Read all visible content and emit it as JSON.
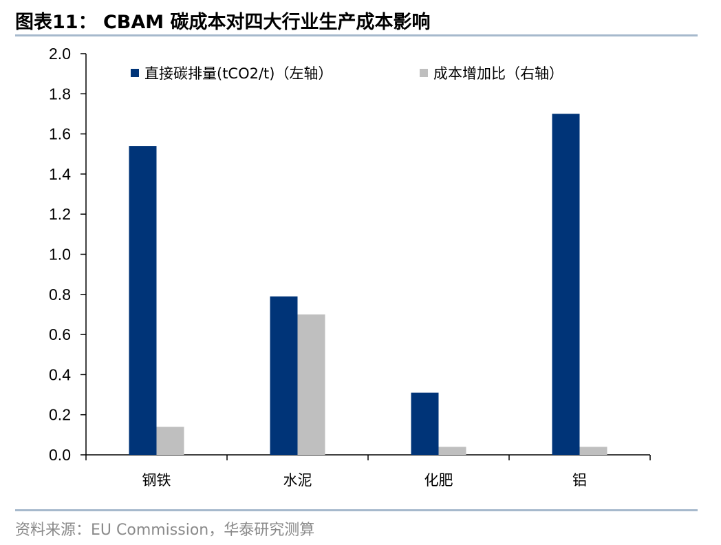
{
  "header": {
    "title": "图表11：  CBAM 碳成本对四大行业生产成本影响"
  },
  "footer": {
    "source": "资料来源：EU Commission，华泰研究测算"
  },
  "colors": {
    "series_primary": "#003478",
    "series_secondary": "#bfbfbf",
    "rule": "#a6b9cc"
  },
  "chart_data": {
    "type": "bar",
    "categories": [
      "钢铁",
      "水泥",
      "化肥",
      "铝"
    ],
    "series": [
      {
        "name": "直接碳排量(tCO2/t)（左轴）",
        "values": [
          1.54,
          0.79,
          0.31,
          1.7
        ]
      },
      {
        "name": "成本增加比（右轴）",
        "values": [
          0.14,
          0.7,
          0.04,
          0.04
        ]
      }
    ],
    "ylim": [
      0,
      2.0
    ],
    "yticks": [
      "0.0",
      "0.2",
      "0.4",
      "0.6",
      "0.8",
      "1.0",
      "1.2",
      "1.4",
      "1.6",
      "1.8",
      "2.0"
    ],
    "legend_position": "top",
    "grid": false
  }
}
